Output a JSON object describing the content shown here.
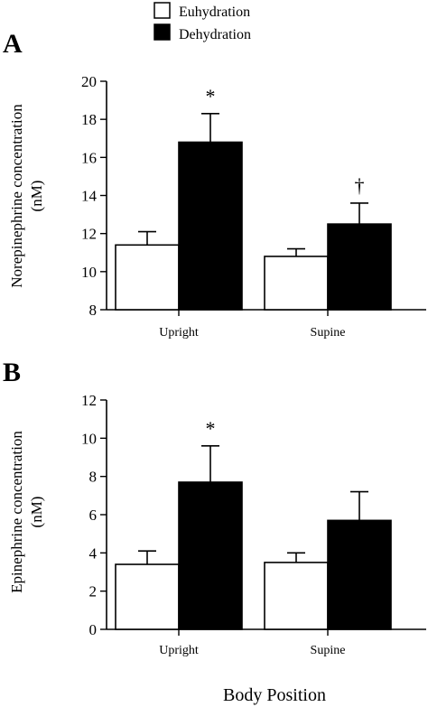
{
  "legend": {
    "items": [
      {
        "label": "Euhydration",
        "color": "#ffffff"
      },
      {
        "label": "Dehydration",
        "color": "#000000"
      }
    ]
  },
  "xlabel": "Body Position",
  "chart_data": [
    {
      "type": "bar",
      "panel": "A",
      "categories": [
        "Upright",
        "Supine"
      ],
      "ylabel": "Norepinephrine concentration (nM)",
      "ylim": [
        8,
        20
      ],
      "yticks": [
        8,
        10,
        12,
        14,
        16,
        18,
        20
      ],
      "series": [
        {
          "name": "Euhydration",
          "values": [
            11.4,
            10.8
          ],
          "errors": [
            0.7,
            0.4
          ],
          "color": "#ffffff"
        },
        {
          "name": "Dehydration",
          "values": [
            16.8,
            12.5
          ],
          "errors": [
            1.5,
            1.1
          ],
          "color": "#000000"
        }
      ],
      "annotations": [
        {
          "category": "Upright",
          "series": "Dehydration",
          "text": "*"
        },
        {
          "category": "Supine",
          "series": "Dehydration",
          "text": "†"
        }
      ]
    },
    {
      "type": "bar",
      "panel": "B",
      "categories": [
        "Upright",
        "Supine"
      ],
      "ylabel": "Epinephrine concentration (nM)",
      "ylim": [
        0,
        12
      ],
      "yticks": [
        0,
        2,
        4,
        6,
        8,
        10,
        12
      ],
      "series": [
        {
          "name": "Euhydration",
          "values": [
            3.4,
            3.5
          ],
          "errors": [
            0.7,
            0.5
          ],
          "color": "#ffffff"
        },
        {
          "name": "Dehydration",
          "values": [
            7.7,
            5.7
          ],
          "errors": [
            1.9,
            1.5
          ],
          "color": "#000000"
        }
      ],
      "annotations": [
        {
          "category": "Upright",
          "series": "Dehydration",
          "text": "*"
        }
      ]
    }
  ]
}
